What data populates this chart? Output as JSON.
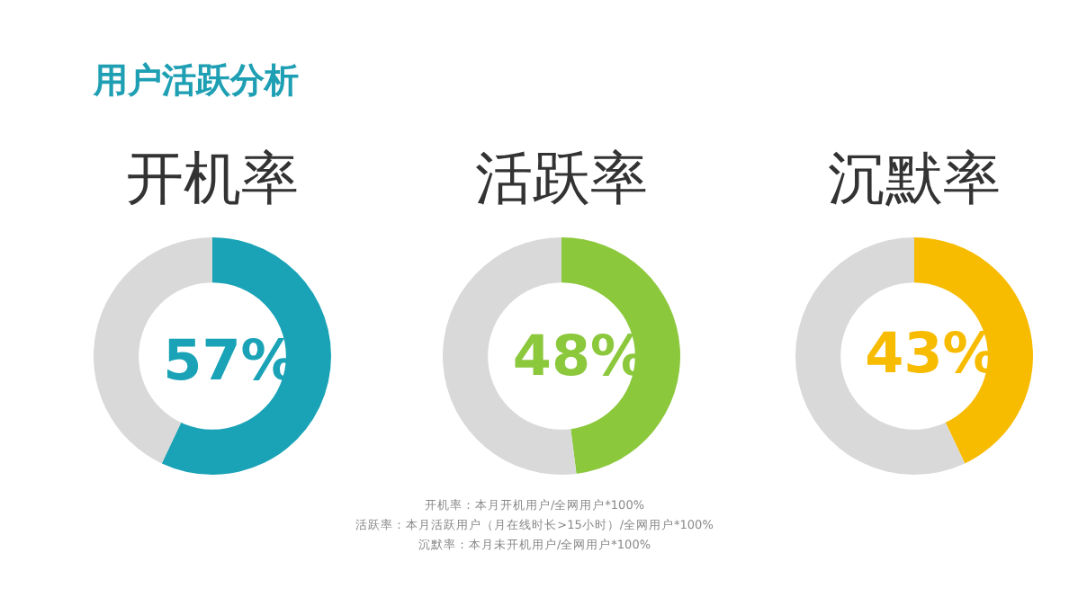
{
  "chart_data": [
    {
      "type": "other",
      "title": "用户活跃分析",
      "annotations": [
        "开机率：本月开机用户/全网用户*100%",
        "活跃率：本月活跃用户（月在线时长>15小时）/全网用户*100%",
        "沉默率：本月未开机用户/全网用户*100%"
      ]
    },
    {
      "type": "donut",
      "title": "开机率",
      "categories": [
        null,
        null
      ],
      "values": [
        57,
        43
      ],
      "colors": [
        "#1aa3b6",
        "#d9d9d9"
      ],
      "value_labels": [
        "57%",
        null
      ]
    },
    {
      "type": "donut",
      "title": "活跃率",
      "categories": [
        null,
        null
      ],
      "values": [
        48,
        52
      ],
      "colors": [
        "#8cc83c",
        "#d9d9d9"
      ],
      "value_labels": [
        "48%",
        null
      ]
    },
    {
      "type": "donut",
      "title": "沉默率",
      "categories": [
        null,
        null
      ],
      "values": [
        43,
        57
      ],
      "colors": [
        "#f7bb00",
        "#d9d9d9"
      ],
      "value_labels": [
        "43%",
        null
      ]
    }
  ]
}
